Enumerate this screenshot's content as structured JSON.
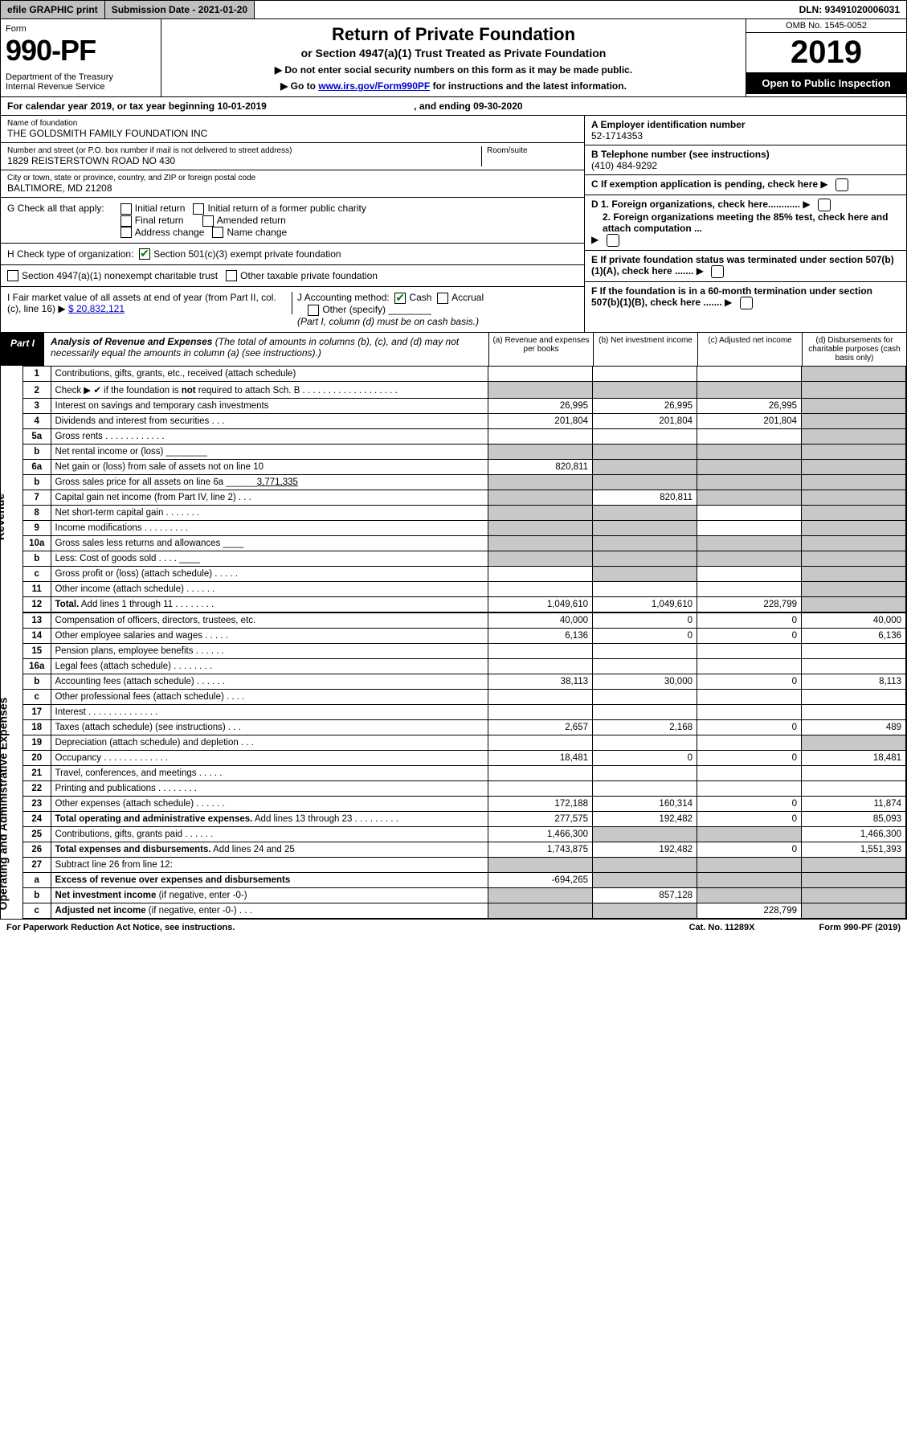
{
  "topbar": {
    "efile": "efile GRAPHIC print",
    "subdate_label": "Submission Date - 2021-01-20",
    "dln": "DLN: 93491020006031"
  },
  "header": {
    "form_word": "Form",
    "form_num": "990-PF",
    "dept": "Department of the Treasury\nInternal Revenue Service",
    "title": "Return of Private Foundation",
    "subtitle": "or Section 4947(a)(1) Trust Treated as Private Foundation",
    "note1": "▶ Do not enter social security numbers on this form as it may be made public.",
    "note2_pre": "▶ Go to ",
    "note2_link": "www.irs.gov/Form990PF",
    "note2_post": " for instructions and the latest information.",
    "omb": "OMB No. 1545-0052",
    "year": "2019",
    "open": "Open to Public Inspection"
  },
  "cal": {
    "text": "For calendar year 2019, or tax year beginning 10-01-2019",
    "text_mid": ", and ending 09-30-2020"
  },
  "id": {
    "name_label": "Name of foundation",
    "name": "THE GOLDSMITH FAMILY FOUNDATION INC",
    "addr_label": "Number and street (or P.O. box number if mail is not delivered to street address)",
    "addr": "1829 REISTERSTOWN ROAD NO 430",
    "room_label": "Room/suite",
    "city_label": "City or town, state or province, country, and ZIP or foreign postal code",
    "city": "BALTIMORE, MD  21208",
    "ein_label": "A Employer identification number",
    "ein": "52-1714353",
    "tel_label": "B Telephone number (see instructions)",
    "tel": "(410) 484-9292",
    "c_label": "C If exemption application is pending, check here",
    "d1": "D 1. Foreign organizations, check here............",
    "d2": "2. Foreign organizations meeting the 85% test, check here and attach computation ...",
    "e": "E  If private foundation status was terminated under section 507(b)(1)(A), check here .......",
    "f": "F  If the foundation is in a 60-month termination under section 507(b)(1)(B), check here .......",
    "g_label": "G Check all that apply:",
    "g_opts": [
      "Initial return",
      "Initial return of a former public charity",
      "Final return",
      "Amended return",
      "Address change",
      "Name change"
    ],
    "h_label": "H Check type of organization:",
    "h_opt1": "Section 501(c)(3) exempt private foundation",
    "h_opt2": "Section 4947(a)(1) nonexempt charitable trust",
    "h_opt3": "Other taxable private foundation",
    "i_label": "I Fair market value of all assets at end of year (from Part II, col. (c), line 16) ▶",
    "i_val": "$  20,832,121",
    "j_label": "J Accounting method:",
    "j_cash": "Cash",
    "j_accrual": "Accrual",
    "j_other": "Other (specify)",
    "j_note": "(Part I, column (d) must be on cash basis.)"
  },
  "part1": {
    "tag": "Part I",
    "title_b": "Analysis of Revenue and Expenses",
    "title_rest": " (The total of amounts in columns (b), (c), and (d) may not necessarily equal the amounts in column (a) (see instructions).)",
    "col_a": "(a)   Revenue and expenses per books",
    "col_b": "(b)   Net investment income",
    "col_c": "(c)   Adjusted net income",
    "col_d": "(d)   Disbursements for charitable purposes (cash basis only)",
    "vside_rev": "Revenue",
    "vside_exp": "Operating and Administrative Expenses"
  },
  "rows": [
    {
      "n": "1",
      "d": "Contributions, gifts, grants, etc., received (attach schedule)",
      "a": "",
      "b": "",
      "c": "",
      "dd": "",
      "dgray": true
    },
    {
      "n": "2",
      "d": "Check ▶ ✔ if the foundation is <b>not</b> required to attach Sch. B  . . . . . . . . . . . . . . . . . . .",
      "a": "",
      "b": "",
      "c": "",
      "dd": "",
      "agray": true,
      "bgray": true,
      "cgray": true,
      "dgray": true
    },
    {
      "n": "3",
      "d": "Interest on savings and temporary cash investments",
      "a": "26,995",
      "b": "26,995",
      "c": "26,995",
      "dd": "",
      "dgray": true
    },
    {
      "n": "4",
      "d": "Dividends and interest from securities   .  .  .",
      "a": "201,804",
      "b": "201,804",
      "c": "201,804",
      "dd": "",
      "dgray": true
    },
    {
      "n": "5a",
      "d": "Gross rents   .  .  .  .  .  .  .  .  .  .  .  .",
      "a": "",
      "b": "",
      "c": "",
      "dd": "",
      "dgray": true
    },
    {
      "n": "b",
      "d": "Net rental income or (loss)  ________",
      "a": "",
      "b": "",
      "c": "",
      "dd": "",
      "agray": true,
      "bgray": true,
      "cgray": true,
      "dgray": true
    },
    {
      "n": "6a",
      "d": "Net gain or (loss) from sale of assets not on line 10",
      "a": "820,811",
      "b": "",
      "c": "",
      "dd": "",
      "bgray": true,
      "cgray": true,
      "dgray": true
    },
    {
      "n": "b",
      "d": "Gross sales price for all assets on line 6a ______<u>3,771,335</u>",
      "a": "",
      "b": "",
      "c": "",
      "dd": "",
      "agray": true,
      "bgray": true,
      "cgray": true,
      "dgray": true
    },
    {
      "n": "7",
      "d": "Capital gain net income (from Part IV, line 2)   .  .  .",
      "a": "",
      "b": "820,811",
      "c": "",
      "dd": "",
      "agray": true,
      "cgray": true,
      "dgray": true
    },
    {
      "n": "8",
      "d": "Net short-term capital gain   .  .  .  .  .  .  .",
      "a": "",
      "b": "",
      "c": "",
      "dd": "",
      "agray": true,
      "bgray": true,
      "dgray": true
    },
    {
      "n": "9",
      "d": "Income modifications   .  .  .  .  .  .  .  .  .",
      "a": "",
      "b": "",
      "c": "",
      "dd": "",
      "agray": true,
      "bgray": true,
      "dgray": true
    },
    {
      "n": "10a",
      "d": "Gross sales less returns and allowances  ____",
      "a": "",
      "b": "",
      "c": "",
      "dd": "",
      "agray": true,
      "bgray": true,
      "cgray": true,
      "dgray": true
    },
    {
      "n": "b",
      "d": "Less: Cost of goods sold   .  .  .  .  ____",
      "a": "",
      "b": "",
      "c": "",
      "dd": "",
      "agray": true,
      "bgray": true,
      "cgray": true,
      "dgray": true
    },
    {
      "n": "c",
      "d": "Gross profit or (loss) (attach schedule)   .  .  .  .  .",
      "a": "",
      "b": "",
      "c": "",
      "dd": "",
      "bgray": true,
      "dgray": true
    },
    {
      "n": "11",
      "d": "Other income (attach schedule)   .  .  .  .  .  .",
      "a": "",
      "b": "",
      "c": "",
      "dd": "",
      "dgray": true
    },
    {
      "n": "12",
      "d": "<b>Total.</b> Add lines 1 through 11   .  .  .  .  .  .  .  .",
      "a": "1,049,610",
      "b": "1,049,610",
      "c": "228,799",
      "dd": "",
      "dgray": true
    }
  ],
  "exprows": [
    {
      "n": "13",
      "d": "Compensation of officers, directors, trustees, etc.",
      "a": "40,000",
      "b": "0",
      "c": "0",
      "dd": "40,000"
    },
    {
      "n": "14",
      "d": "Other employee salaries and wages   .  .  .  .  .",
      "a": "6,136",
      "b": "0",
      "c": "0",
      "dd": "6,136"
    },
    {
      "n": "15",
      "d": "Pension plans, employee benefits   .  .  .  .  .  .",
      "a": "",
      "b": "",
      "c": "",
      "dd": ""
    },
    {
      "n": "16a",
      "d": "Legal fees (attach schedule)   .  .  .  .  .  .  .  .",
      "a": "",
      "b": "",
      "c": "",
      "dd": ""
    },
    {
      "n": "b",
      "d": "Accounting fees (attach schedule)   .  .  .  .  .  .",
      "a": "38,113",
      "b": "30,000",
      "c": "0",
      "dd": "8,113"
    },
    {
      "n": "c",
      "d": "Other professional fees (attach schedule)   .  .  .  .",
      "a": "",
      "b": "",
      "c": "",
      "dd": ""
    },
    {
      "n": "17",
      "d": "Interest   .  .  .  .  .  .  .  .  .  .  .  .  .  .",
      "a": "",
      "b": "",
      "c": "",
      "dd": ""
    },
    {
      "n": "18",
      "d": "Taxes (attach schedule) (see instructions)   .  .  .",
      "a": "2,657",
      "b": "2,168",
      "c": "0",
      "dd": "489"
    },
    {
      "n": "19",
      "d": "Depreciation (attach schedule) and depletion   .  .  .",
      "a": "",
      "b": "",
      "c": "",
      "dd": "",
      "dgray": true
    },
    {
      "n": "20",
      "d": "Occupancy   .  .  .  .  .  .  .  .  .  .  .  .  .",
      "a": "18,481",
      "b": "0",
      "c": "0",
      "dd": "18,481"
    },
    {
      "n": "21",
      "d": "Travel, conferences, and meetings   .  .  .  .  .",
      "a": "",
      "b": "",
      "c": "",
      "dd": ""
    },
    {
      "n": "22",
      "d": "Printing and publications   .  .  .  .  .  .  .  .",
      "a": "",
      "b": "",
      "c": "",
      "dd": ""
    },
    {
      "n": "23",
      "d": "Other expenses (attach schedule)   .  .  .  .  .  .",
      "a": "172,188",
      "b": "160,314",
      "c": "0",
      "dd": "11,874"
    },
    {
      "n": "24",
      "d": "<b>Total operating and administrative expenses.</b> Add lines 13 through 23   .  .  .  .  .  .  .  .  .",
      "a": "277,575",
      "b": "192,482",
      "c": "0",
      "dd": "85,093"
    },
    {
      "n": "25",
      "d": "Contributions, gifts, grants paid   .  .  .  .  .  .",
      "a": "1,466,300",
      "b": "",
      "c": "",
      "dd": "1,466,300",
      "bgray": true,
      "cgray": true
    },
    {
      "n": "26",
      "d": "<b>Total expenses and disbursements.</b> Add lines 24 and 25",
      "a": "1,743,875",
      "b": "192,482",
      "c": "0",
      "dd": "1,551,393"
    },
    {
      "n": "27",
      "d": "Subtract line 26 from line 12:",
      "a": "",
      "b": "",
      "c": "",
      "dd": "",
      "agray": true,
      "bgray": true,
      "cgray": true,
      "dgray": true
    },
    {
      "n": "a",
      "d": "<b>Excess of revenue over expenses and disbursements</b>",
      "a": "-694,265",
      "b": "",
      "c": "",
      "dd": "",
      "bgray": true,
      "cgray": true,
      "dgray": true
    },
    {
      "n": "b",
      "d": "<b>Net investment income</b> (if negative, enter -0-)",
      "a": "",
      "b": "857,128",
      "c": "",
      "dd": "",
      "agray": true,
      "cgray": true,
      "dgray": true
    },
    {
      "n": "c",
      "d": "<b>Adjusted net income</b> (if negative, enter -0-)   .  .  .",
      "a": "",
      "b": "",
      "c": "228,799",
      "dd": "",
      "agray": true,
      "bgray": true,
      "dgray": true
    }
  ],
  "foot": {
    "left": "For Paperwork Reduction Act Notice, see instructions.",
    "mid": "Cat. No. 11289X",
    "right": "Form 990-PF (2019)"
  }
}
